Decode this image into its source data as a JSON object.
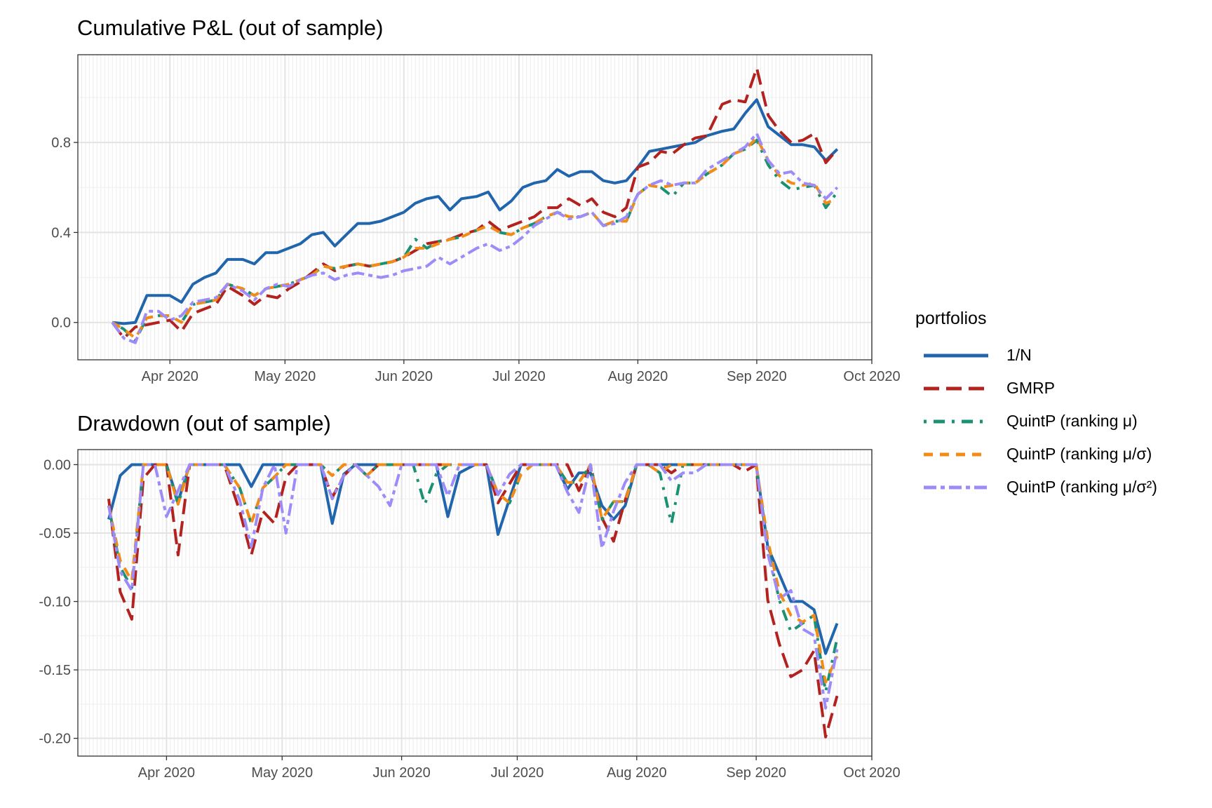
{
  "legend": {
    "title": "portfolios",
    "items": [
      {
        "label": "1/N",
        "color": "#2166ac",
        "dash": "solid"
      },
      {
        "label": "GMRP",
        "color": "#b2221e",
        "dash": "longdash"
      },
      {
        "label": "QuintP (ranking μ)",
        "color": "#1b9173",
        "dash": "dotdash"
      },
      {
        "label": "QuintP (ranking μ/σ)",
        "color": "#f28c17",
        "dash": "dashed"
      },
      {
        "label": "QuintP (ranking μ/σ²)",
        "color": "#9d8cf7",
        "dash": "twodash"
      }
    ]
  },
  "chart_data": [
    {
      "type": "line",
      "title": "Cumulative P&L (out of sample)",
      "xlabel": "",
      "ylabel": "",
      "xlim": [
        "2020-03-08",
        "2020-10-01"
      ],
      "ylim": [
        -0.166,
        1.19
      ],
      "grid": true,
      "legend_position": "right",
      "x_ticks": [
        "Apr 2020",
        "May 2020",
        "Jun 2020",
        "Jul 2020",
        "Aug 2020",
        "Sep 2020",
        "Oct 2020"
      ],
      "y_ticks": [
        "0.0",
        "0.4",
        "0.8"
      ],
      "x": [
        "2020-03-17",
        "2020-03-20",
        "2020-03-23",
        "2020-03-26",
        "2020-03-29",
        "2020-04-01",
        "2020-04-04",
        "2020-04-07",
        "2020-04-10",
        "2020-04-13",
        "2020-04-16",
        "2020-04-20",
        "2020-04-23",
        "2020-04-26",
        "2020-04-29",
        "2020-05-02",
        "2020-05-05",
        "2020-05-08",
        "2020-05-11",
        "2020-05-14",
        "2020-05-17",
        "2020-05-20",
        "2020-05-23",
        "2020-05-26",
        "2020-05-29",
        "2020-06-01",
        "2020-06-04",
        "2020-06-07",
        "2020-06-10",
        "2020-06-13",
        "2020-06-16",
        "2020-06-20",
        "2020-06-23",
        "2020-06-26",
        "2020-06-29",
        "2020-07-02",
        "2020-07-05",
        "2020-07-08",
        "2020-07-11",
        "2020-07-14",
        "2020-07-17",
        "2020-07-20",
        "2020-07-23",
        "2020-07-26",
        "2020-07-29",
        "2020-08-01",
        "2020-08-04",
        "2020-08-07",
        "2020-08-10",
        "2020-08-13",
        "2020-08-16",
        "2020-08-19",
        "2020-08-23",
        "2020-08-26",
        "2020-08-29",
        "2020-09-01",
        "2020-09-04",
        "2020-09-07",
        "2020-09-10",
        "2020-09-13",
        "2020-09-16",
        "2020-09-19",
        "2020-09-22"
      ],
      "series": [
        {
          "name": "1/N",
          "values": [
            0.0,
            -0.005,
            0.0,
            0.12,
            0.12,
            0.12,
            0.09,
            0.17,
            0.2,
            0.22,
            0.28,
            0.28,
            0.26,
            0.31,
            0.31,
            0.33,
            0.35,
            0.39,
            0.4,
            0.34,
            0.39,
            0.44,
            0.44,
            0.45,
            0.47,
            0.49,
            0.53,
            0.55,
            0.56,
            0.5,
            0.55,
            0.56,
            0.58,
            0.5,
            0.54,
            0.6,
            0.62,
            0.63,
            0.68,
            0.65,
            0.67,
            0.67,
            0.63,
            0.62,
            0.63,
            0.69,
            0.76,
            0.77,
            0.78,
            0.79,
            0.8,
            0.83,
            0.85,
            0.86,
            0.93,
            0.99,
            0.87,
            0.83,
            0.79,
            0.79,
            0.78,
            0.72,
            0.77
          ]
        },
        {
          "name": "GMRP",
          "values": [
            0.0,
            -0.07,
            -0.02,
            -0.01,
            0.0,
            0.01,
            -0.04,
            0.04,
            0.06,
            0.08,
            0.16,
            0.12,
            0.08,
            0.12,
            0.11,
            0.15,
            0.18,
            0.22,
            0.26,
            0.23,
            0.25,
            0.26,
            0.25,
            0.26,
            0.27,
            0.29,
            0.32,
            0.35,
            0.36,
            0.37,
            0.39,
            0.41,
            0.45,
            0.41,
            0.43,
            0.45,
            0.47,
            0.51,
            0.51,
            0.55,
            0.52,
            0.55,
            0.49,
            0.47,
            0.51,
            0.69,
            0.71,
            0.76,
            0.75,
            0.79,
            0.82,
            0.83,
            0.97,
            0.99,
            0.98,
            1.13,
            0.92,
            0.85,
            0.8,
            0.81,
            0.84,
            0.71,
            0.77
          ]
        },
        {
          "name": "QuintP (ranking μ)",
          "values": [
            0.0,
            -0.03,
            -0.08,
            0.02,
            0.03,
            0.03,
            0.0,
            0.08,
            0.09,
            0.1,
            0.17,
            0.15,
            0.12,
            0.15,
            0.16,
            0.17,
            0.19,
            0.21,
            0.25,
            0.24,
            0.25,
            0.26,
            0.25,
            0.26,
            0.27,
            0.29,
            0.37,
            0.33,
            0.36,
            0.37,
            0.38,
            0.41,
            0.43,
            0.4,
            0.39,
            0.42,
            0.44,
            0.47,
            0.49,
            0.47,
            0.47,
            0.49,
            0.43,
            0.45,
            0.45,
            0.57,
            0.61,
            0.6,
            0.56,
            0.62,
            0.62,
            0.66,
            0.7,
            0.75,
            0.77,
            0.81,
            0.7,
            0.63,
            0.59,
            0.6,
            0.61,
            0.51,
            0.58
          ]
        },
        {
          "name": "QuintP (ranking μ/σ)",
          "values": [
            0.0,
            -0.03,
            -0.07,
            0.02,
            0.03,
            0.03,
            0.0,
            0.08,
            0.09,
            0.1,
            0.17,
            0.15,
            0.12,
            0.15,
            0.16,
            0.17,
            0.19,
            0.21,
            0.25,
            0.24,
            0.25,
            0.26,
            0.25,
            0.26,
            0.27,
            0.29,
            0.33,
            0.33,
            0.35,
            0.37,
            0.38,
            0.41,
            0.43,
            0.4,
            0.39,
            0.42,
            0.44,
            0.47,
            0.49,
            0.47,
            0.47,
            0.49,
            0.43,
            0.45,
            0.45,
            0.57,
            0.61,
            0.6,
            0.61,
            0.62,
            0.62,
            0.66,
            0.7,
            0.75,
            0.77,
            0.82,
            0.72,
            0.65,
            0.62,
            0.61,
            0.62,
            0.53,
            0.55
          ]
        },
        {
          "name": "QuintP (ranking μ/σ²)",
          "values": [
            0.0,
            -0.07,
            -0.09,
            0.05,
            0.05,
            0.01,
            0.03,
            0.09,
            0.1,
            0.11,
            0.17,
            0.14,
            0.1,
            0.15,
            0.17,
            0.16,
            0.19,
            0.21,
            0.22,
            0.19,
            0.21,
            0.22,
            0.21,
            0.2,
            0.21,
            0.23,
            0.24,
            0.25,
            0.29,
            0.26,
            0.29,
            0.33,
            0.35,
            0.32,
            0.34,
            0.38,
            0.43,
            0.46,
            0.49,
            0.46,
            0.47,
            0.49,
            0.43,
            0.44,
            0.47,
            0.57,
            0.61,
            0.63,
            0.61,
            0.62,
            0.62,
            0.68,
            0.72,
            0.75,
            0.78,
            0.84,
            0.72,
            0.66,
            0.67,
            0.62,
            0.61,
            0.55,
            0.6
          ]
        }
      ]
    },
    {
      "type": "line",
      "title": "Drawdown (out of sample)",
      "xlabel": "",
      "ylabel": "",
      "xlim": [
        "2020-03-09",
        "2020-10-01"
      ],
      "ylim": [
        -0.213,
        0.011
      ],
      "grid": true,
      "legend_position": "right",
      "x_ticks": [
        "Apr 2020",
        "May 2020",
        "Jun 2020",
        "Jul 2020",
        "Aug 2020",
        "Sep 2020",
        "Oct 2020"
      ],
      "y_ticks": [
        "0.00",
        "-0.05",
        "-0.10",
        "-0.15",
        "-0.20"
      ],
      "x": [
        "2020-03-17",
        "2020-03-20",
        "2020-03-23",
        "2020-03-26",
        "2020-03-29",
        "2020-04-01",
        "2020-04-04",
        "2020-04-07",
        "2020-04-10",
        "2020-04-13",
        "2020-04-16",
        "2020-04-20",
        "2020-04-23",
        "2020-04-26",
        "2020-04-29",
        "2020-05-02",
        "2020-05-05",
        "2020-05-08",
        "2020-05-11",
        "2020-05-14",
        "2020-05-17",
        "2020-05-20",
        "2020-05-23",
        "2020-05-26",
        "2020-05-29",
        "2020-06-01",
        "2020-06-04",
        "2020-06-07",
        "2020-06-10",
        "2020-06-13",
        "2020-06-16",
        "2020-06-20",
        "2020-06-23",
        "2020-06-26",
        "2020-06-29",
        "2020-07-02",
        "2020-07-05",
        "2020-07-08",
        "2020-07-11",
        "2020-07-14",
        "2020-07-17",
        "2020-07-20",
        "2020-07-23",
        "2020-07-26",
        "2020-07-29",
        "2020-08-01",
        "2020-08-04",
        "2020-08-07",
        "2020-08-10",
        "2020-08-13",
        "2020-08-16",
        "2020-08-19",
        "2020-08-23",
        "2020-08-26",
        "2020-08-29",
        "2020-09-01",
        "2020-09-04",
        "2020-09-07",
        "2020-09-10",
        "2020-09-13",
        "2020-09-16",
        "2020-09-19",
        "2020-09-22"
      ],
      "series": [
        {
          "name": "1/N",
          "values": [
            -0.04,
            -0.008,
            0,
            0,
            0,
            0,
            -0.027,
            0,
            0,
            0,
            0,
            0,
            -0.016,
            0,
            0,
            0,
            0,
            0,
            0,
            -0.043,
            -0.007,
            0,
            0,
            0,
            0,
            0,
            0,
            0,
            0,
            -0.038,
            -0.006,
            0,
            0,
            -0.051,
            -0.025,
            0,
            0,
            0,
            0,
            -0.018,
            -0.006,
            -0.006,
            -0.03,
            -0.04,
            -0.03,
            0,
            0,
            0,
            0,
            0,
            0,
            0,
            0,
            0,
            0,
            0,
            -0.06,
            -0.08,
            -0.1,
            -0.1,
            -0.106,
            -0.138,
            -0.116
          ]
        },
        {
          "name": "GMRP",
          "values": [
            -0.025,
            -0.093,
            -0.113,
            -0.01,
            0,
            0,
            -0.066,
            0,
            0,
            0,
            0,
            -0.034,
            -0.066,
            -0.034,
            -0.043,
            -0.009,
            0,
            0,
            0,
            -0.024,
            -0.008,
            0,
            -0.008,
            0,
            0,
            0,
            0,
            0,
            0,
            0,
            0,
            0,
            0,
            -0.028,
            -0.014,
            0,
            0,
            0,
            0,
            0,
            -0.019,
            0,
            -0.039,
            -0.056,
            -0.026,
            0,
            0,
            0,
            -0.006,
            0,
            0,
            0,
            0,
            0,
            -0.005,
            0,
            -0.099,
            -0.131,
            -0.155,
            -0.15,
            -0.136,
            -0.199,
            -0.169
          ]
        },
        {
          "name": "QuintP (ranking μ)",
          "values": [
            -0.03,
            -0.075,
            -0.09,
            0,
            0,
            0,
            -0.029,
            0,
            0,
            0,
            0,
            -0.017,
            -0.043,
            -0.017,
            -0.009,
            0,
            0,
            0,
            0,
            -0.008,
            0,
            0,
            -0.008,
            0,
            0,
            0,
            0,
            -0.029,
            -0.007,
            0,
            0,
            0,
            0,
            -0.021,
            -0.028,
            -0.007,
            0,
            0,
            0,
            -0.013,
            -0.013,
            0,
            -0.04,
            -0.027,
            -0.027,
            0,
            0,
            -0.006,
            -0.043,
            0,
            0,
            0,
            0,
            0,
            0,
            0,
            -0.061,
            -0.099,
            -0.122,
            -0.116,
            -0.11,
            -0.166,
            -0.127
          ]
        },
        {
          "name": "QuintP (ranking μ/σ)",
          "values": [
            -0.03,
            -0.07,
            -0.085,
            0,
            0,
            0,
            -0.029,
            0,
            0,
            0,
            0,
            -0.017,
            -0.043,
            -0.017,
            -0.009,
            0,
            0,
            0,
            0,
            -0.008,
            0,
            0,
            -0.008,
            0,
            0,
            0,
            0,
            0,
            0,
            0,
            0,
            0,
            0,
            -0.021,
            -0.028,
            -0.007,
            0,
            0,
            0,
            -0.013,
            -0.013,
            0,
            -0.04,
            -0.027,
            -0.027,
            0,
            0,
            -0.006,
            0,
            0,
            0,
            0,
            0,
            0,
            0,
            0,
            -0.055,
            -0.093,
            -0.11,
            -0.115,
            -0.11,
            -0.159,
            -0.14
          ]
        },
        {
          "name": "QuintP (ranking μ/σ²)",
          "values": [
            -0.03,
            -0.078,
            -0.092,
            0,
            0,
            -0.038,
            -0.019,
            0,
            0,
            0,
            0,
            -0.026,
            -0.06,
            -0.017,
            0,
            -0.05,
            0,
            0,
            0,
            -0.025,
            -0.008,
            0,
            -0.008,
            -0.016,
            -0.03,
            0,
            0,
            0,
            0,
            -0.023,
            0,
            0,
            0,
            -0.022,
            -0.007,
            0,
            0,
            0,
            0,
            -0.02,
            -0.035,
            0,
            -0.061,
            -0.034,
            -0.013,
            0,
            0,
            0,
            -0.012,
            -0.006,
            -0.006,
            0,
            0,
            0,
            0,
            0,
            -0.065,
            -0.098,
            -0.092,
            -0.12,
            -0.125,
            -0.178,
            -0.135
          ]
        }
      ]
    }
  ]
}
